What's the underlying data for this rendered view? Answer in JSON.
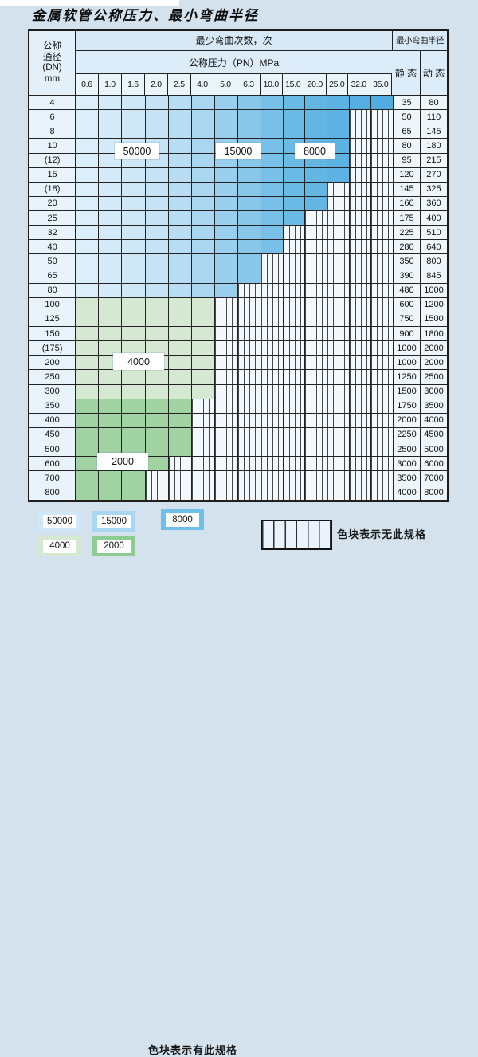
{
  "title": "金属软管公称压力、最小弯曲半径",
  "table": {
    "header": {
      "dn_lines": [
        "公称",
        "通径",
        "(DN)",
        "mm"
      ],
      "bend_times": "最少弯曲次数，次",
      "pressure": "公称压力（PN）MPa",
      "min_radius": "最小弯曲半径",
      "static_label": "静 态",
      "dynamic_label": "动 态",
      "pressures": [
        "0.6",
        "1.0",
        "1.6",
        "2.0",
        "2.5",
        "4.0",
        "5.0",
        "6.3",
        "10.0",
        "15.0",
        "20.0",
        "25.0",
        "32.0",
        "35.0"
      ]
    },
    "rows": [
      {
        "dn": "4",
        "colored": 14,
        "region": "blue",
        "max_pn": "35.0",
        "static": "35",
        "dynamic": "80"
      },
      {
        "dn": "6",
        "colored": 12,
        "region": "blue",
        "max_pn": "25.0",
        "static": "50",
        "dynamic": "110"
      },
      {
        "dn": "8",
        "colored": 12,
        "region": "blue",
        "max_pn": "25.0",
        "static": "65",
        "dynamic": "145"
      },
      {
        "dn": "10",
        "colored": 12,
        "region": "blue",
        "max_pn": "25.0",
        "static": "80",
        "dynamic": "180"
      },
      {
        "dn": "(12)",
        "colored": 12,
        "region": "blue",
        "max_pn": "25.0",
        "static": "95",
        "dynamic": "215"
      },
      {
        "dn": "15",
        "colored": 12,
        "region": "blue",
        "max_pn": "25.0",
        "static": "120",
        "dynamic": "270"
      },
      {
        "dn": "(18)",
        "colored": 11,
        "region": "blue",
        "max_pn": "20.0",
        "static": "145",
        "dynamic": "325"
      },
      {
        "dn": "20",
        "colored": 11,
        "region": "blue",
        "max_pn": "20.0",
        "static": "160",
        "dynamic": "360"
      },
      {
        "dn": "25",
        "colored": 10,
        "region": "blue",
        "max_pn": "15.0",
        "static": "175",
        "dynamic": "400"
      },
      {
        "dn": "32",
        "colored": 9,
        "region": "blue",
        "max_pn": "10.0",
        "static": "225",
        "dynamic": "510"
      },
      {
        "dn": "40",
        "colored": 9,
        "region": "blue",
        "max_pn": "10.0",
        "static": "280",
        "dynamic": "640"
      },
      {
        "dn": "50",
        "colored": 8,
        "region": "blue",
        "max_pn": "6.3",
        "static": "350",
        "dynamic": "800"
      },
      {
        "dn": "65",
        "colored": 8,
        "region": "blue",
        "max_pn": "6.3",
        "static": "390",
        "dynamic": "845"
      },
      {
        "dn": "80",
        "colored": 7,
        "region": "blue",
        "max_pn": "5.0",
        "static": "480",
        "dynamic": "1000"
      },
      {
        "dn": "100",
        "colored": 6,
        "region": "green_light",
        "max_pn": "4.0",
        "static": "600",
        "dynamic": "1200"
      },
      {
        "dn": "125",
        "colored": 6,
        "region": "green_light",
        "max_pn": "4.0",
        "static": "750",
        "dynamic": "1500"
      },
      {
        "dn": "150",
        "colored": 6,
        "region": "green_light",
        "max_pn": "4.0",
        "static": "900",
        "dynamic": "1800"
      },
      {
        "dn": "(175)",
        "colored": 6,
        "region": "green_light",
        "max_pn": "4.0",
        "static": "1000",
        "dynamic": "2000"
      },
      {
        "dn": "200",
        "colored": 6,
        "region": "green_light",
        "max_pn": "4.0",
        "static": "1000",
        "dynamic": "2000"
      },
      {
        "dn": "250",
        "colored": 6,
        "region": "green_light",
        "max_pn": "4.0",
        "static": "1250",
        "dynamic": "2500"
      },
      {
        "dn": "300",
        "colored": 6,
        "region": "green_light",
        "max_pn": "4.0",
        "static": "1500",
        "dynamic": "3000"
      },
      {
        "dn": "350",
        "colored": 5,
        "region": "green_dark",
        "max_pn": "2.5",
        "static": "1750",
        "dynamic": "3500"
      },
      {
        "dn": "400",
        "colored": 5,
        "region": "green_dark",
        "max_pn": "2.5",
        "static": "2000",
        "dynamic": "4000"
      },
      {
        "dn": "450",
        "colored": 5,
        "region": "green_dark",
        "max_pn": "2.5",
        "static": "2250",
        "dynamic": "4500"
      },
      {
        "dn": "500",
        "colored": 5,
        "region": "green_dark",
        "max_pn": "2.5",
        "static": "2500",
        "dynamic": "5000"
      },
      {
        "dn": "600",
        "colored": 4,
        "region": "green_dark",
        "max_pn": "2.0",
        "static": "3000",
        "dynamic": "6000"
      },
      {
        "dn": "700",
        "colored": 3,
        "region": "green_dark",
        "max_pn": "1.6",
        "static": "3500",
        "dynamic": "7000"
      },
      {
        "dn": "800",
        "colored": 3,
        "region": "green_dark",
        "max_pn": "1.6",
        "static": "4000",
        "dynamic": "8000"
      }
    ],
    "cycle_labels": [
      "50000",
      "15000",
      "8000",
      "4000",
      "2000"
    ]
  },
  "legend": {
    "has_spec_label": "色块表示有此规格",
    "no_spec_label": "色块表示无此规格",
    "items": [
      {
        "label": "50000",
        "color": "#cfe7f6"
      },
      {
        "label": "15000",
        "color": "#a9d6f0"
      },
      {
        "label": "8000",
        "color": "#6fc0e8"
      },
      {
        "label": "4000",
        "color": "#d5e8d1"
      },
      {
        "label": "2000",
        "color": "#8fcc92"
      }
    ]
  },
  "palette": {
    "page_bg": "#d3e2ed",
    "grid_line": "#222222",
    "blue_shades": [
      "#dceefa",
      "#d6ebf8",
      "#cfe8f7",
      "#c5e3f5",
      "#b8ddf3",
      "#a9d6f0",
      "#99cfed",
      "#88c7ea",
      "#78c0e8",
      "#6cbae6",
      "#63b6e4",
      "#5cb2e3",
      "#56afe2",
      "#51ace1"
    ],
    "green_light": "#d5e8d1",
    "green_dark": "#a1d2a1",
    "hatch_bg": "#f3f8fc"
  }
}
